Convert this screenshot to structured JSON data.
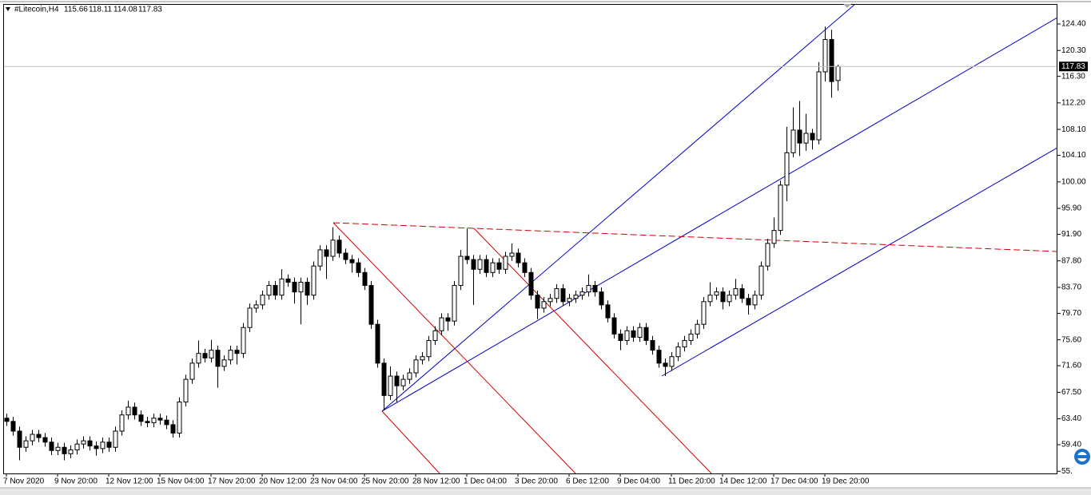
{
  "chart_data": {
    "type": "candlestick",
    "title": "#Litecoin,H4",
    "categories": [
      "7 Nov 2020",
      null,
      null,
      null,
      null,
      null,
      null,
      null,
      "9 Nov 20:00",
      null,
      null,
      null,
      null,
      null,
      null,
      null,
      "12 Nov 12:00",
      null,
      null,
      null,
      null,
      null,
      null,
      null,
      "15 Nov 04:00",
      null,
      null,
      null,
      null,
      null,
      null,
      null,
      "17 Nov 20:00",
      null,
      null,
      null,
      null,
      null,
      null,
      null,
      "20 Nov 12:00",
      null,
      null,
      null,
      null,
      null,
      null,
      null,
      "23 Nov 04:00",
      null,
      null,
      null,
      null,
      null,
      null,
      null,
      "25 Nov 20:00",
      null,
      null,
      null,
      null,
      null,
      null,
      null,
      "28 Nov 12:00",
      null,
      null,
      null,
      null,
      null,
      null,
      null,
      "1 Dec 04:00",
      null,
      null,
      null,
      null,
      null,
      null,
      null,
      "3 Dec 20:00",
      null,
      null,
      null,
      null,
      null,
      null,
      null,
      "6 Dec 12:00",
      null,
      null,
      null,
      null,
      null,
      null,
      null,
      "9 Dec 04:00",
      null,
      null,
      null,
      null,
      null,
      null,
      null,
      "11 Dec 20:00",
      null,
      null,
      null,
      null,
      null,
      null,
      null,
      "14 Dec 12:00",
      null,
      null,
      null,
      null,
      null,
      null,
      null,
      "17 Dec 04:00",
      null,
      null,
      null,
      null,
      null,
      null,
      null,
      "19 Dec 20:00",
      null,
      null
    ],
    "open": [
      63.5,
      63.0,
      61.5,
      59.0,
      60.0,
      61.0,
      60.5,
      59.8,
      58.5,
      59.0,
      58.0,
      58.6,
      59.5,
      60.0,
      59.2,
      58.8,
      59.8,
      59.0,
      61.5,
      64.0,
      65.2,
      64.0,
      63.0,
      62.8,
      63.5,
      63.2,
      62.5,
      61.2,
      66.0,
      69.5,
      72.0,
      73.5,
      72.8,
      74.0,
      71.5,
      72.5,
      74.0,
      73.5,
      77.5,
      80.5,
      81.0,
      82.5,
      84.0,
      82.5,
      85.0,
      84.5,
      83.0,
      84.5,
      82.5,
      87.0,
      89.5,
      88.5,
      91.0,
      89.0,
      88.0,
      87.5,
      86.0,
      84.0,
      78.0,
      72.0,
      67.0,
      70.0,
      68.5,
      69.5,
      70.5,
      72.5,
      73.0,
      75.5,
      77.0,
      79.0,
      78.5,
      84.0,
      88.5,
      88.0,
      86.5,
      88.0,
      86.0,
      87.5,
      86.5,
      88.5,
      89.0,
      87.5,
      86.0,
      82.5,
      80.5,
      81.5,
      82.0,
      83.5,
      81.5,
      82.0,
      82.5,
      83.0,
      84.0,
      83.0,
      81.0,
      79.0,
      76.5,
      75.5,
      77.0,
      76.0,
      77.5,
      75.5,
      74.0,
      72.0,
      71.5,
      73.0,
      74.5,
      75.5,
      76.5,
      78.0,
      81.5,
      82.5,
      83.0,
      81.5,
      82.5,
      83.5,
      82.0,
      81.0,
      82.5,
      87.0,
      90.5,
      92.5,
      99.5,
      104.5,
      108.0,
      106.0,
      107.5,
      106.5,
      117.0,
      122.0,
      115.66
    ],
    "high": [
      64.2,
      63.7,
      62.2,
      60.7,
      61.7,
      61.7,
      61.2,
      60.5,
      59.7,
      59.7,
      59.3,
      60.2,
      60.7,
      60.7,
      59.9,
      60.5,
      60.5,
      62.2,
      64.7,
      66.2,
      65.9,
      64.7,
      63.7,
      64.2,
      64.2,
      63.9,
      63.2,
      66.7,
      70.2,
      72.7,
      75.5,
      74.2,
      75.6,
      74.7,
      73.2,
      74.7,
      74.7,
      78.2,
      81.2,
      81.7,
      83.2,
      84.7,
      84.7,
      86.5,
      85.7,
      85.2,
      85.2,
      85.2,
      87.7,
      90.2,
      90.2,
      93.0,
      91.7,
      89.7,
      88.7,
      88.2,
      86.7,
      84.7,
      78.7,
      72.7,
      71.5,
      70.7,
      70.2,
      71.2,
      73.2,
      73.7,
      76.2,
      77.7,
      79.7,
      79.7,
      84.7,
      89.5,
      92.8,
      88.7,
      88.7,
      88.7,
      88.2,
      88.2,
      89.2,
      90.5,
      89.7,
      88.2,
      86.7,
      83.2,
      82.2,
      82.7,
      84.2,
      84.2,
      82.7,
      83.2,
      83.7,
      85.7,
      84.7,
      83.7,
      81.7,
      79.7,
      77.2,
      77.7,
      77.7,
      78.2,
      78.2,
      76.2,
      74.7,
      72.7,
      73.7,
      75.2,
      76.2,
      77.2,
      78.7,
      82.2,
      84.5,
      83.7,
      83.7,
      83.2,
      85.0,
      84.2,
      82.7,
      83.2,
      87.7,
      91.2,
      94.5,
      100.2,
      108.5,
      111.5,
      112.5,
      110.5,
      108.2,
      118.5,
      124.0,
      123.5,
      118.11
    ],
    "low": [
      62.3,
      60.8,
      57.0,
      58.3,
      59.3,
      59.8,
      59.1,
      57.8,
      57.8,
      57.0,
      57.3,
      57.9,
      58.8,
      58.5,
      57.7,
      58.1,
      58.3,
      58.3,
      60.8,
      63.3,
      63.3,
      62.3,
      62.1,
      62.1,
      62.5,
      61.8,
      60.5,
      60.5,
      65.3,
      68.8,
      71.3,
      72.1,
      72.1,
      68.2,
      70.8,
      71.8,
      71.8,
      72.8,
      76.8,
      79.8,
      80.3,
      81.8,
      81.8,
      81.8,
      83.8,
      81.2,
      78.0,
      81.0,
      81.8,
      86.3,
      85.0,
      87.8,
      88.3,
      87.3,
      86.0,
      85.3,
      83.3,
      77.3,
      71.3,
      64.7,
      66.3,
      66.0,
      67.8,
      68.8,
      69.8,
      71.8,
      72.3,
      74.8,
      76.3,
      77.0,
      77.8,
      83.3,
      87.3,
      81.0,
      85.8,
      85.3,
      85.3,
      85.8,
      85.8,
      87.8,
      86.8,
      85.3,
      81.8,
      78.8,
      79.8,
      80.8,
      81.3,
      80.8,
      80.8,
      81.3,
      81.8,
      82.3,
      82.3,
      80.3,
      78.3,
      75.8,
      74.0,
      74.8,
      75.3,
      75.3,
      74.8,
      73.3,
      71.3,
      70.0,
      70.8,
      72.3,
      73.8,
      74.8,
      75.8,
      77.3,
      80.8,
      81.8,
      80.3,
      80.8,
      81.8,
      81.3,
      79.5,
      80.3,
      81.8,
      86.3,
      89.8,
      91.8,
      97.0,
      103.8,
      104.0,
      104.8,
      105.0,
      105.8,
      115.5,
      113.0,
      114.08
    ],
    "close": [
      63.0,
      61.5,
      59.0,
      60.0,
      61.0,
      60.5,
      59.8,
      58.5,
      59.0,
      58.0,
      58.6,
      59.5,
      60.0,
      59.2,
      58.8,
      59.8,
      59.0,
      61.5,
      64.0,
      65.2,
      64.0,
      63.0,
      62.8,
      63.5,
      63.2,
      62.5,
      61.2,
      66.0,
      69.5,
      72.0,
      73.5,
      72.8,
      74.0,
      71.5,
      72.5,
      74.0,
      73.5,
      77.5,
      80.5,
      81.0,
      82.5,
      84.0,
      82.5,
      85.0,
      84.5,
      83.0,
      84.5,
      82.5,
      87.0,
      89.5,
      88.5,
      91.0,
      89.0,
      88.0,
      87.5,
      86.0,
      84.0,
      78.0,
      72.0,
      67.0,
      70.0,
      68.5,
      69.5,
      70.5,
      72.5,
      73.0,
      75.5,
      77.0,
      79.0,
      78.5,
      84.0,
      88.5,
      88.0,
      86.5,
      88.0,
      86.0,
      87.5,
      86.5,
      88.5,
      89.0,
      87.5,
      86.0,
      82.5,
      80.5,
      81.5,
      82.0,
      83.5,
      81.5,
      82.0,
      82.5,
      83.0,
      84.0,
      83.0,
      81.0,
      79.0,
      76.5,
      75.5,
      77.0,
      76.0,
      77.5,
      75.5,
      74.0,
      72.0,
      71.5,
      73.0,
      74.5,
      75.5,
      76.5,
      78.0,
      81.5,
      82.5,
      83.0,
      81.5,
      82.5,
      83.5,
      82.0,
      81.0,
      82.5,
      87.0,
      90.5,
      92.5,
      99.5,
      104.5,
      108.0,
      106.0,
      107.5,
      106.5,
      117.0,
      122.0,
      115.5,
      117.83
    ],
    "ylim": [
      54.96,
      127.48
    ],
    "yticks": [
      {
        "value": 124.4,
        "label": "124.40"
      },
      {
        "value": 120.3,
        "label": "120.30"
      },
      {
        "value": 116.3,
        "label": "116.30"
      },
      {
        "value": 112.2,
        "label": "112.20"
      },
      {
        "value": 108.1,
        "label": "108.10"
      },
      {
        "value": 104.1,
        "label": "104.10"
      },
      {
        "value": 100.0,
        "label": "100.00"
      },
      {
        "value": 95.9,
        "label": "95.90"
      },
      {
        "value": 91.9,
        "label": "91.90"
      },
      {
        "value": 87.8,
        "label": "87.80"
      },
      {
        "value": 83.7,
        "label": "83.70"
      },
      {
        "value": 79.7,
        "label": "79.70"
      },
      {
        "value": 75.6,
        "label": "75.60"
      },
      {
        "value": 71.6,
        "label": "71.60"
      },
      {
        "value": 67.5,
        "label": "67.50"
      },
      {
        "value": 63.4,
        "label": "63.40"
      },
      {
        "value": 59.4,
        "label": "59.40"
      },
      {
        "value": 55.3,
        "label": "55."
      }
    ],
    "grid": false
  }
}
